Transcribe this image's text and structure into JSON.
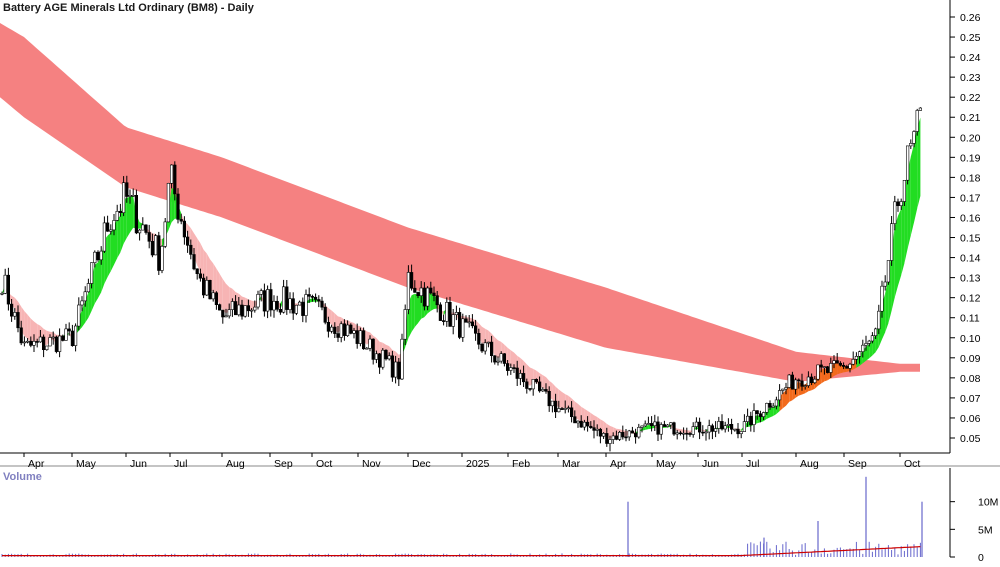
{
  "chart_title": "Battery AGE Minerals Ltd Ordinary (BM8) - Daily",
  "volume_panel_label": "Volume",
  "colors": {
    "background": "#ffffff",
    "candle_up_fill": "#ffffff",
    "candle_down_fill": "#000000",
    "long_band": "#f47a7a",
    "short_band_bearish": "#f7b4b4",
    "short_band_bullish": "#22dd22",
    "short_band_transition": "#f26a1b",
    "volume_bar": "#6666cc",
    "volume_ma": "#cc0000",
    "axis": "#000000"
  },
  "chart_data": [
    {
      "type": "candlestick",
      "title": "Battery AGE Minerals Ltd Ordinary (BM8) - Daily",
      "y_axis_side": "right",
      "ylim": [
        0.04,
        0.27
      ],
      "y_ticks": [
        "0.05",
        "0.06",
        "0.07",
        "0.08",
        "0.09",
        "0.10",
        "0.11",
        "0.12",
        "0.13",
        "0.14",
        "0.15",
        "0.16",
        "0.17",
        "0.18",
        "0.19",
        "0.20",
        "0.21",
        "0.22",
        "0.23",
        "0.24",
        "0.25",
        "0.26"
      ],
      "x_ticks": [
        "Apr",
        "May",
        "Jun",
        "Jul",
        "Aug",
        "Sep",
        "Oct",
        "Nov",
        "Dec",
        "2025",
        "Feb",
        "Mar",
        "Apr",
        "May",
        "Jun",
        "Jul",
        "Aug",
        "Sep",
        "Oct"
      ],
      "grid": false,
      "overlay": "Guppy multiple moving average ribbons (short-term and long-term bands)",
      "close_path": [
        {
          "date": "2024-04",
          "close": 0.095
        },
        {
          "date": "2024-05",
          "close": 0.1
        },
        {
          "date": "2024-05-20",
          "close": 0.16
        },
        {
          "date": "2024-06",
          "close": 0.17
        },
        {
          "date": "2024-06-20",
          "close": 0.14
        },
        {
          "date": "2024-07",
          "close": 0.18
        },
        {
          "date": "2024-07-20",
          "close": 0.13
        },
        {
          "date": "2024-08",
          "close": 0.11
        },
        {
          "date": "2024-09",
          "close": 0.12
        },
        {
          "date": "2024-10",
          "close": 0.115
        },
        {
          "date": "2024-11",
          "close": 0.1
        },
        {
          "date": "2024-11-25",
          "close": 0.082
        },
        {
          "date": "2024-12",
          "close": 0.13
        },
        {
          "date": "2025-01",
          "close": 0.105
        },
        {
          "date": "2025-02",
          "close": 0.085
        },
        {
          "date": "2025-03",
          "close": 0.065
        },
        {
          "date": "2025-04",
          "close": 0.05
        },
        {
          "date": "2025-05",
          "close": 0.055
        },
        {
          "date": "2025-06",
          "close": 0.055
        },
        {
          "date": "2025-07",
          "close": 0.055
        },
        {
          "date": "2025-08",
          "close": 0.08
        },
        {
          "date": "2025-09",
          "close": 0.085
        },
        {
          "date": "2025-09-20",
          "close": 0.1
        },
        {
          "date": "2025-10",
          "close": 0.175
        },
        {
          "date": "2025-10-08",
          "close": 0.21
        }
      ],
      "long_ma_band": [
        {
          "date": "2024-04",
          "low": 0.21,
          "high": 0.25
        },
        {
          "date": "2024-06",
          "low": 0.175,
          "high": 0.205
        },
        {
          "date": "2024-08",
          "low": 0.16,
          "high": 0.19
        },
        {
          "date": "2024-12",
          "low": 0.125,
          "high": 0.155
        },
        {
          "date": "2025-04",
          "low": 0.095,
          "high": 0.125
        },
        {
          "date": "2025-08",
          "low": 0.078,
          "high": 0.093
        },
        {
          "date": "2025-10",
          "low": 0.083,
          "high": 0.087
        }
      ]
    },
    {
      "type": "bar",
      "title": "Volume",
      "y_ticks": [
        "0",
        "5M",
        "10M"
      ],
      "ylim": [
        0,
        15000000
      ],
      "spikes": [
        {
          "date": "2025-04",
          "value": 10000000
        },
        {
          "date": "2025-07",
          "value": 3500000
        },
        {
          "date": "2025-08",
          "value": 6500000
        },
        {
          "date": "2025-09",
          "value": 14500000
        },
        {
          "date": "2025-10",
          "value": 10000000
        }
      ]
    }
  ]
}
